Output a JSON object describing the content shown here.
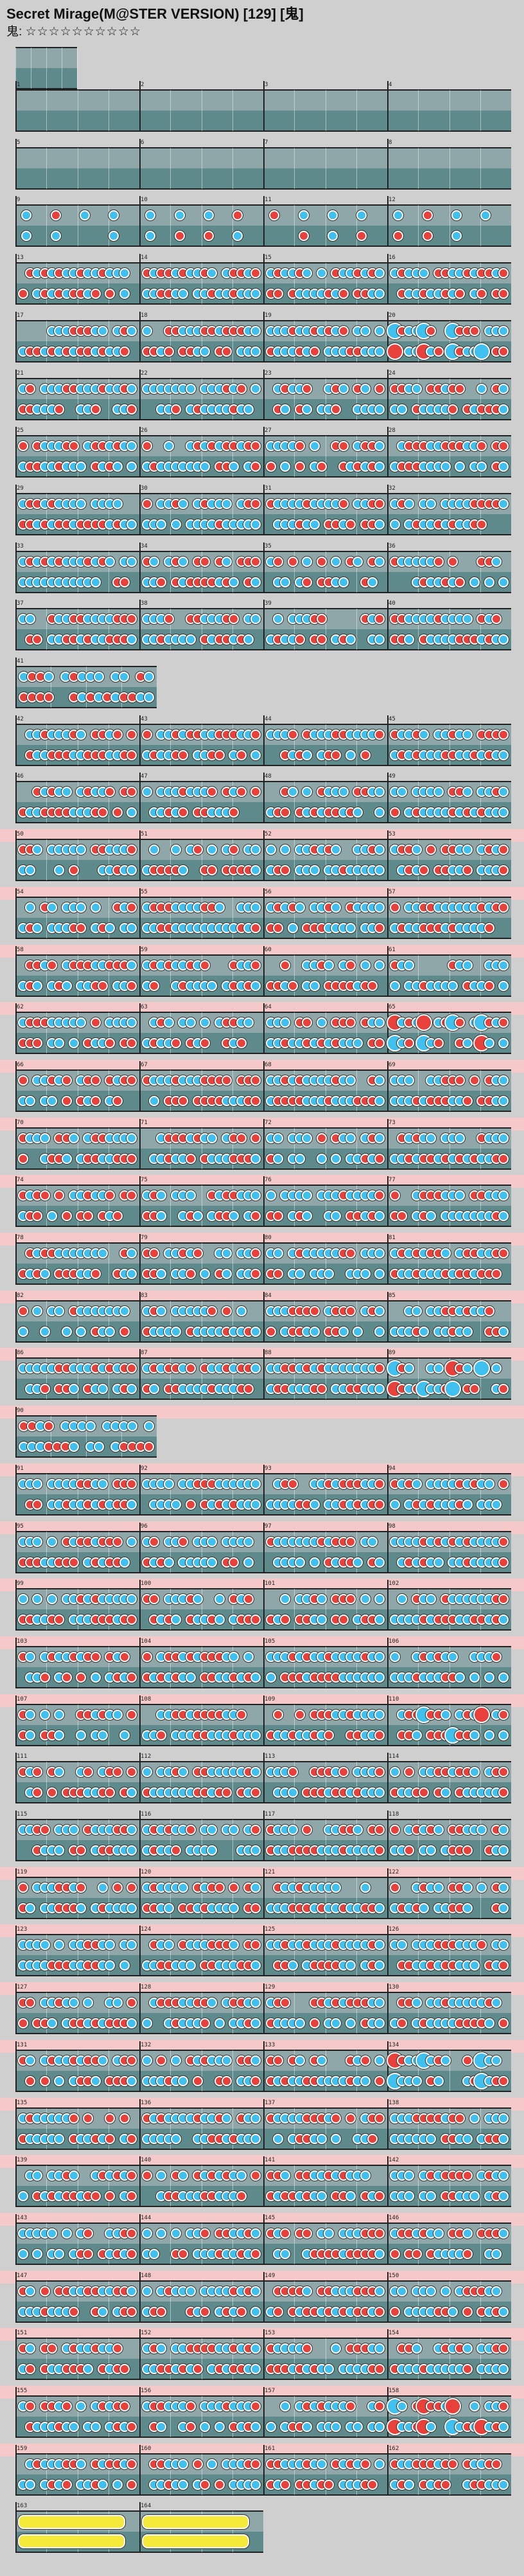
{
  "header": {
    "title": "Secret Mirage(M@STER VERSION) [129] [鬼]",
    "difficulty_label": "鬼:",
    "stars": "☆☆☆☆☆☆☆☆☆☆",
    "star_count": 10
  },
  "colors": {
    "don": "#e8403a",
    "ka": "#3fc0ee",
    "roll": "#f5ea3a",
    "gogo_band": "#f5c9c9",
    "lane_top": "#8fa7a8",
    "lane_bottom": "#5f8a8c"
  },
  "song": {
    "measures_total": 174
  }
}
